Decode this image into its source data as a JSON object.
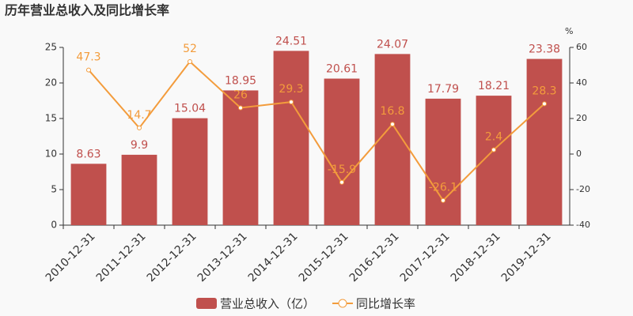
{
  "chart_data": {
    "type": "bar-line",
    "title": "历年营业总收入及同比增长率",
    "y2_label": "%",
    "categories": [
      "2010-12-31",
      "2011-12-31",
      "2012-12-31",
      "2013-12-31",
      "2014-12-31",
      "2015-12-31",
      "2016-12-31",
      "2017-12-31",
      "2018-12-31",
      "2019-12-31"
    ],
    "series": [
      {
        "name": "营业总收入（亿）",
        "color": "#c0504d",
        "type": "bar",
        "axis": "y",
        "values": [
          8.63,
          9.9,
          15.04,
          18.95,
          24.51,
          20.61,
          24.07,
          17.79,
          18.21,
          23.38
        ]
      },
      {
        "name": "同比增长率",
        "color": "#f39c3c",
        "type": "line",
        "axis": "y2",
        "values": [
          47.3,
          14.7,
          52,
          26,
          29.3,
          -15.9,
          16.8,
          -26.1,
          2.4,
          28.3
        ]
      }
    ],
    "ylim": [
      0,
      25
    ],
    "yticks": [
      0,
      5,
      10,
      15,
      20,
      25
    ],
    "y2lim": [
      -40,
      60
    ],
    "y2ticks": [
      -40,
      -20,
      0,
      20,
      40,
      60
    ],
    "grid": false
  }
}
